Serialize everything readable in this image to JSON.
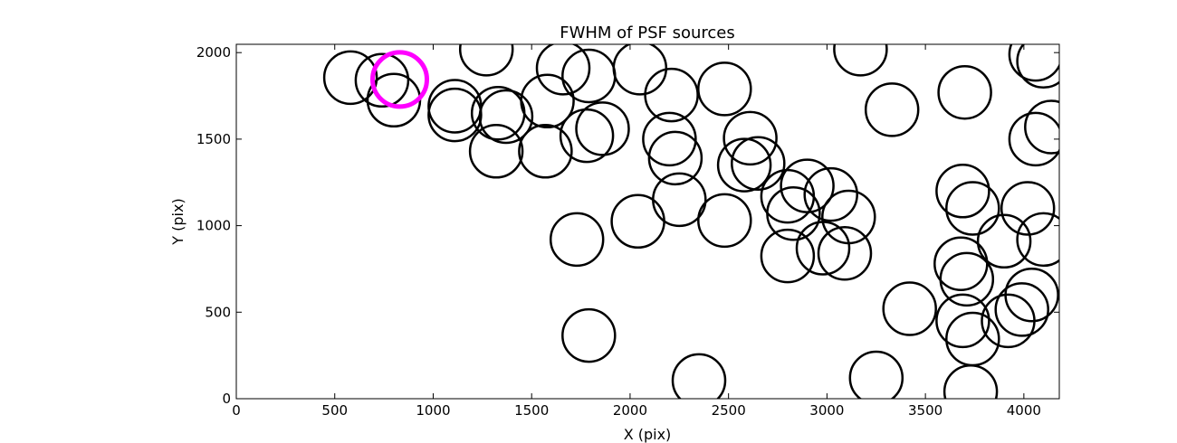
{
  "chart_data": {
    "type": "scatter",
    "title": "FWHM of PSF sources",
    "xlabel": "X (pix)",
    "ylabel": "Y (pix)",
    "xlim": [
      0,
      4180
    ],
    "ylim": [
      0,
      2048
    ],
    "xticks": [
      0,
      500,
      1000,
      1500,
      2000,
      2500,
      3000,
      3500,
      4000
    ],
    "yticks": [
      0,
      500,
      1000,
      1500,
      2000
    ],
    "grid": false,
    "legend": "none",
    "marker": "open-circle",
    "colors": {
      "default": "#000000",
      "highlight": "#ff00ff"
    },
    "series": [
      {
        "color": "#000000",
        "points": [
          [
            580,
            1855
          ],
          [
            740,
            1840
          ],
          [
            800,
            1725
          ],
          [
            1110,
            1690
          ],
          [
            1110,
            1640
          ],
          [
            1270,
            2020
          ],
          [
            1330,
            1650
          ],
          [
            1370,
            1630
          ],
          [
            1320,
            1430
          ],
          [
            1580,
            1720
          ],
          [
            1570,
            1430
          ],
          [
            1660,
            1910
          ],
          [
            1790,
            1865
          ],
          [
            1780,
            1520
          ],
          [
            1860,
            1560
          ],
          [
            2050,
            1910
          ],
          [
            2210,
            1755
          ],
          [
            2200,
            1500
          ],
          [
            2230,
            1390
          ],
          [
            2250,
            1150
          ],
          [
            2040,
            1025
          ],
          [
            1730,
            920
          ],
          [
            1790,
            365
          ],
          [
            2350,
            105
          ],
          [
            2480,
            1790
          ],
          [
            2610,
            1505
          ],
          [
            2580,
            1350
          ],
          [
            2650,
            1360
          ],
          [
            2480,
            1030
          ],
          [
            2800,
            1170
          ],
          [
            2830,
            1070
          ],
          [
            2900,
            1230
          ],
          [
            3020,
            1180
          ],
          [
            3110,
            1050
          ],
          [
            2800,
            825
          ],
          [
            2980,
            870
          ],
          [
            3090,
            840
          ],
          [
            3170,
            2020
          ],
          [
            3330,
            1670
          ],
          [
            3250,
            120
          ],
          [
            3420,
            520
          ],
          [
            3700,
            1770
          ],
          [
            3690,
            1200
          ],
          [
            3740,
            1100
          ],
          [
            3680,
            780
          ],
          [
            3710,
            690
          ],
          [
            3690,
            450
          ],
          [
            3740,
            345
          ],
          [
            3730,
            40
          ],
          [
            3920,
            450
          ],
          [
            3990,
            515
          ],
          [
            4040,
            600
          ],
          [
            3900,
            910
          ],
          [
            4020,
            1100
          ],
          [
            4100,
            920
          ],
          [
            4060,
            1500
          ],
          [
            4140,
            1570
          ],
          [
            4060,
            1990
          ],
          [
            4100,
            1950
          ]
        ]
      },
      {
        "color": "#ff00ff",
        "points": [
          [
            830,
            1845
          ]
        ]
      }
    ]
  }
}
